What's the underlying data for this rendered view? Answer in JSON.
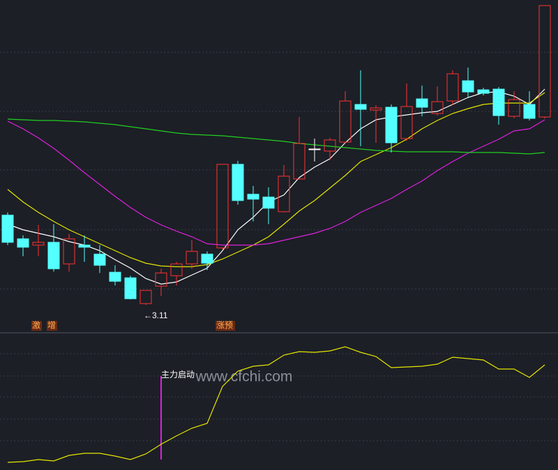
{
  "chart_data": [
    {
      "type": "candlestick",
      "open": [
        4.4,
        4.06,
        3.97,
        4.01,
        3.7,
        3.97,
        3.84,
        3.58,
        3.5,
        3.13,
        3.38,
        3.53,
        3.7,
        3.84,
        3.93,
        5.13,
        4.7,
        4.66,
        4.45,
        4.92,
        5.35,
        5.32,
        5.45,
        5.99,
        5.91,
        5.95,
        5.5,
        6.07,
        5.86,
        6.04,
        6.33,
        6.2,
        6.21,
        5.82,
        5.99,
        5.81
      ],
      "high": [
        4.44,
        4.11,
        4.26,
        4.27,
        4.13,
        4.11,
        3.97,
        3.68,
        3.53,
        3.32,
        3.63,
        3.73,
        4.04,
        3.88,
        5.13,
        5.18,
        4.82,
        4.8,
        5.12,
        5.81,
        5.5,
        5.51,
        6.18,
        6.48,
        5.98,
        5.99,
        6.29,
        6.26,
        6.25,
        6.48,
        6.52,
        6.23,
        6.24,
        6.18,
        6.18,
        7.41
      ],
      "low": [
        3.97,
        3.81,
        3.81,
        3.59,
        3.59,
        3.73,
        3.57,
        3.39,
        3.19,
        3.11,
        3.24,
        3.39,
        3.63,
        3.61,
        3.91,
        4.55,
        4.31,
        4.27,
        4.44,
        4.91,
        5.17,
        5.19,
        5.43,
        5.39,
        5.44,
        5.3,
        5.47,
        5.82,
        5.83,
        5.98,
        6.09,
        6.12,
        5.7,
        5.79,
        5.76,
        5.79
      ],
      "close": [
        4.01,
        3.94,
        4.01,
        3.63,
        4.06,
        3.94,
        3.68,
        3.45,
        3.2,
        3.32,
        3.57,
        3.7,
        3.88,
        3.71,
        5.13,
        4.61,
        4.63,
        4.5,
        4.96,
        5.43,
        5.35,
        5.48,
        6.04,
        5.92,
        5.94,
        5.44,
        5.96,
        5.95,
        6.03,
        6.43,
        6.17,
        6.15,
        5.83,
        6.06,
        5.79,
        7.41
      ],
      "up_color": "#ff3232",
      "down_color": "#54ffff",
      "flat_color": "#ffffff",
      "ylim": [
        2.79,
        7.49
      ],
      "lines": [
        {
          "color": "#ffffff",
          "values": [
            4.27,
            4.19,
            4.14,
            4.09,
            4.02,
            3.97,
            3.89,
            3.76,
            3.64,
            3.49,
            3.41,
            3.44,
            3.54,
            3.64,
            3.89,
            4.19,
            4.37,
            4.59,
            4.69,
            4.94,
            5.09,
            5.21,
            5.44,
            5.64,
            5.77,
            5.81,
            5.84,
            5.87,
            5.89,
            5.99,
            6.09,
            6.16,
            6.17,
            6.11,
            5.99,
            6.21
          ]
        },
        {
          "color": "#e6e600",
          "values": [
            4.77,
            4.59,
            4.44,
            4.31,
            4.19,
            4.09,
            3.99,
            3.89,
            3.79,
            3.71,
            3.67,
            3.66,
            3.66,
            3.69,
            3.77,
            3.87,
            3.97,
            4.09,
            4.27,
            4.46,
            4.61,
            4.79,
            4.97,
            5.17,
            5.27,
            5.37,
            5.49,
            5.64,
            5.76,
            5.86,
            5.93,
            5.99,
            6.01,
            6.01,
            6.01,
            6.16
          ]
        },
        {
          "color": "#e020e0",
          "values": [
            5.75,
            5.64,
            5.51,
            5.36,
            5.19,
            5.01,
            4.84,
            4.67,
            4.51,
            4.37,
            4.26,
            4.17,
            4.09,
            3.99,
            3.97,
            3.97,
            3.97,
            3.99,
            4.04,
            4.09,
            4.14,
            4.21,
            4.31,
            4.44,
            4.54,
            4.64,
            4.77,
            4.89,
            5.04,
            5.17,
            5.29,
            5.39,
            5.49,
            5.61,
            5.64,
            5.77
          ]
        },
        {
          "color": "#20d020",
          "values": [
            5.78,
            5.77,
            5.76,
            5.76,
            5.75,
            5.74,
            5.72,
            5.7,
            5.67,
            5.64,
            5.61,
            5.58,
            5.56,
            5.55,
            5.54,
            5.52,
            5.5,
            5.48,
            5.46,
            5.43,
            5.41,
            5.39,
            5.37,
            5.35,
            5.33,
            5.32,
            5.31,
            5.31,
            5.31,
            5.31,
            5.3,
            5.3,
            5.3,
            5.29,
            5.28,
            5.3
          ]
        }
      ],
      "annotations": [
        "激",
        "增",
        "涨预",
        "←3.11"
      ]
    },
    {
      "type": "line",
      "color": "#e6e600",
      "values": [
        -4,
        -3,
        0,
        -2,
        6,
        9,
        9,
        5,
        0,
        8,
        22,
        34,
        45,
        52,
        105,
        127,
        134,
        136,
        150,
        155,
        154,
        156,
        162,
        154,
        148,
        132,
        133,
        134,
        137,
        147,
        145,
        143,
        130,
        130,
        118,
        136
      ],
      "ylim": [
        -15,
        182
      ],
      "signal": {
        "label": "主力启动",
        "value": 120,
        "color": "#e020e0"
      },
      "watermark": "www.cfchi.com"
    }
  ]
}
